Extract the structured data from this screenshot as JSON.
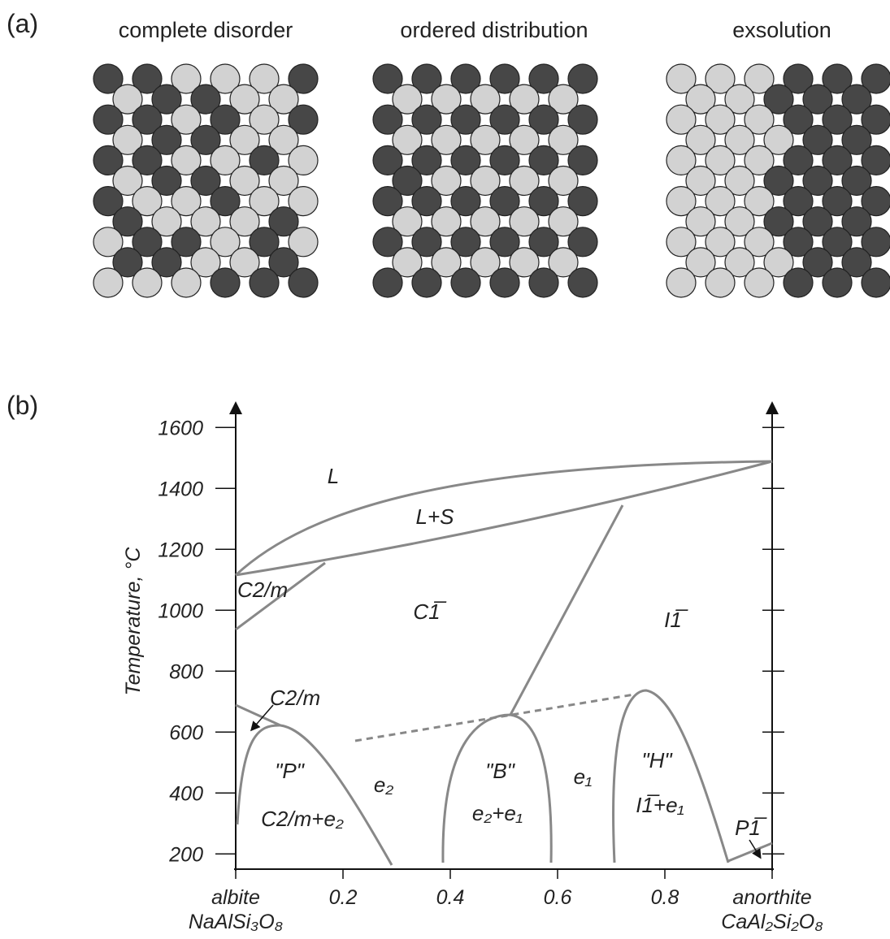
{
  "panel_a": {
    "label": "(a)",
    "patterns": [
      {
        "title": "complete disorder"
      },
      {
        "title": "ordered distribution"
      },
      {
        "title": "exsolution"
      }
    ]
  },
  "panel_b": {
    "label": "(b)",
    "y_axis_label": "Temperature, °C",
    "xlim": [
      0,
      1
    ],
    "ylim": [
      150,
      1680
    ],
    "yticks": [
      200,
      400,
      600,
      800,
      1000,
      1200,
      1400,
      1600
    ],
    "xticks": [
      {
        "value": 0,
        "label": "albite",
        "formula": "NaAlSi₃O₈"
      },
      0.2,
      0.4,
      0.6,
      0.8,
      {
        "value": 1,
        "label": "anorthite",
        "formula": "CaAl₂Si₂O₈"
      }
    ],
    "regions": [
      "L",
      "L+S",
      "C2/m",
      "C1̅",
      "I1̅",
      "C2/m",
      "\"P\"",
      "C2/m+e₂",
      "e₂",
      "\"B\"",
      "e₂+e₁",
      "e₁",
      "\"H\"",
      "I1̅+e₁",
      "P1̅"
    ]
  }
}
